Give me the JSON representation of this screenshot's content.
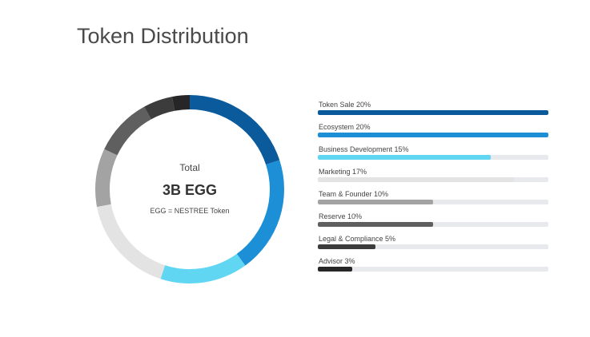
{
  "page": {
    "title": "Token Distribution"
  },
  "center": {
    "label": "Total",
    "value": "3B EGG",
    "note": "EGG = NESTREE Token"
  },
  "chart_data": [
    {
      "type": "pie",
      "variant": "donut",
      "title": "",
      "categories": [
        "Token Sale",
        "Ecosystem",
        "Business Development",
        "Marketing",
        "Team & Founder",
        "Reserve",
        "Legal & Compliance",
        "Advisor"
      ],
      "values": [
        20,
        20,
        15,
        17,
        10,
        10,
        5,
        3
      ],
      "colors": [
        "#0a5a9c",
        "#1c8fd6",
        "#60d6f3",
        "#e3e3e3",
        "#a3a3a3",
        "#5f5f5f",
        "#3c3c3c",
        "#262626"
      ],
      "start": "top",
      "direction": "clockwise"
    },
    {
      "type": "bar",
      "orientation": "horizontal",
      "title": "",
      "categories": [
        "Token Sale 20%",
        "Ecosystem 20%",
        "Business Development 15%",
        "Marketing 17%",
        "Team & Founder 10%",
        "Reserve 10%",
        "Legal & Compliance 5%",
        "Advisor 3%"
      ],
      "values": [
        20,
        20,
        15,
        17,
        10,
        10,
        5,
        3
      ],
      "xlim": [
        0,
        20
      ],
      "colors": [
        "#0a5a9c",
        "#1c8fd6",
        "#60d6f3",
        "#e3e3e3",
        "#a3a3a3",
        "#5f5f5f",
        "#3c3c3c",
        "#262626"
      ],
      "track_color": "#e8e9ec",
      "grid": false,
      "legend": "none"
    }
  ]
}
